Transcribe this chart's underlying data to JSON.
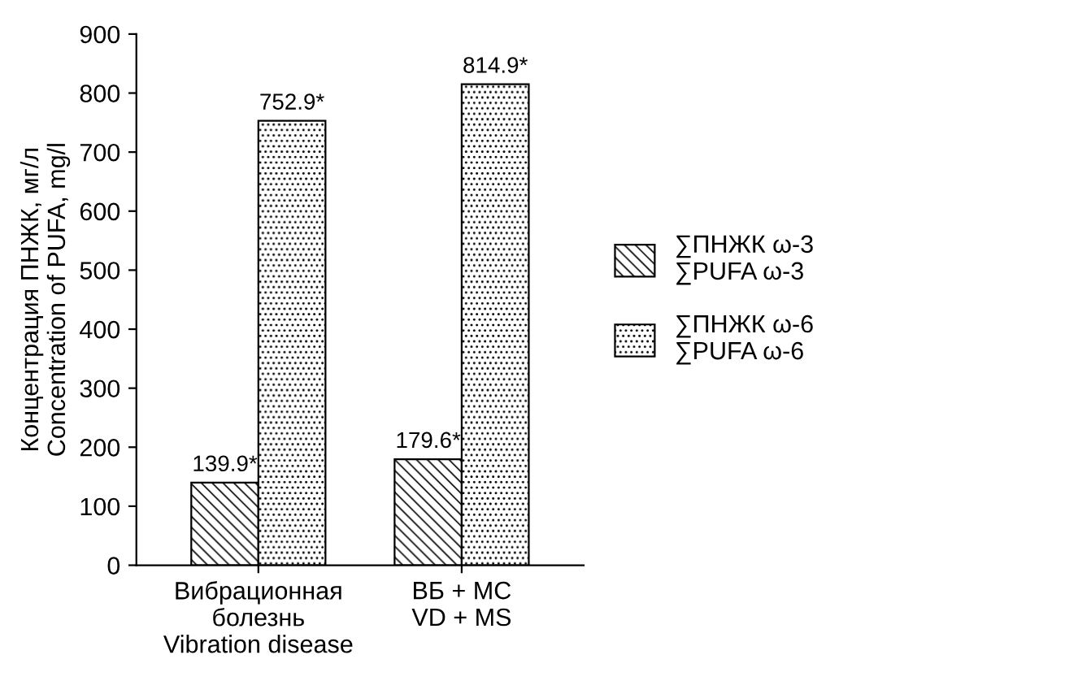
{
  "chart_data": {
    "type": "bar",
    "categories": [
      "Вибрационная\nболезнь\nVibration disease",
      "ВБ + МС\nVD + MS"
    ],
    "series": [
      {
        "name": "∑ПНЖК ω-3\n∑PUFA ω-3",
        "color": "#000000",
        "values": [
          139.9,
          179.6
        ],
        "value_labels": [
          "139.9*",
          "179.6*"
        ]
      },
      {
        "name": "∑ПНЖК ω-6\n∑PUFA ω-6",
        "color": "#000000",
        "values": [
          752.9,
          814.9
        ],
        "value_labels": [
          "752.9*",
          "814.9*"
        ]
      }
    ],
    "ylabel": "Концентрация ПНЖК, мг/л\nConcentration of PUFA, mg/l",
    "ylim": [
      0,
      900
    ],
    "yticks": [
      0,
      100,
      200,
      300,
      400,
      500,
      600,
      700,
      800,
      900
    ],
    "grid": false,
    "legend": "right"
  }
}
